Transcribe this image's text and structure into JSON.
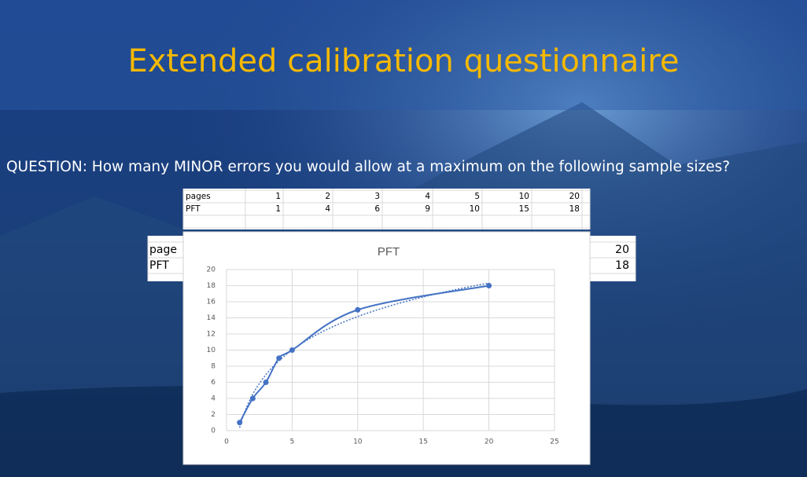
{
  "slide": {
    "title": "Extended calibration questionnaire",
    "question": "QUESTION: How many MINOR errors you would allow at a maximum on the following sample sizes?"
  },
  "background_table": {
    "rows": [
      [
        "page",
        "20"
      ],
      [
        "PFT",
        "18"
      ]
    ]
  },
  "table": {
    "rows": [
      [
        "pages",
        1,
        2,
        3,
        4,
        5,
        10,
        20
      ],
      [
        "PFT",
        1,
        4,
        6,
        9,
        10,
        15,
        18
      ]
    ]
  },
  "chart_data": {
    "type": "line",
    "title": "PFT",
    "x": [
      1,
      2,
      3,
      4,
      5,
      10,
      20
    ],
    "series": [
      {
        "name": "PFT",
        "color": "#4472c4",
        "values": [
          1,
          4,
          6,
          9,
          10,
          15,
          18
        ]
      }
    ],
    "xlim": [
      0,
      25
    ],
    "xticks": [
      0,
      5,
      10,
      15,
      20,
      25
    ],
    "ylim": [
      0,
      20
    ],
    "yticks": [
      0,
      2,
      4,
      6,
      8,
      10,
      12,
      14,
      16,
      18,
      20
    ],
    "grid": true,
    "smooth": true,
    "trendline": "log"
  }
}
